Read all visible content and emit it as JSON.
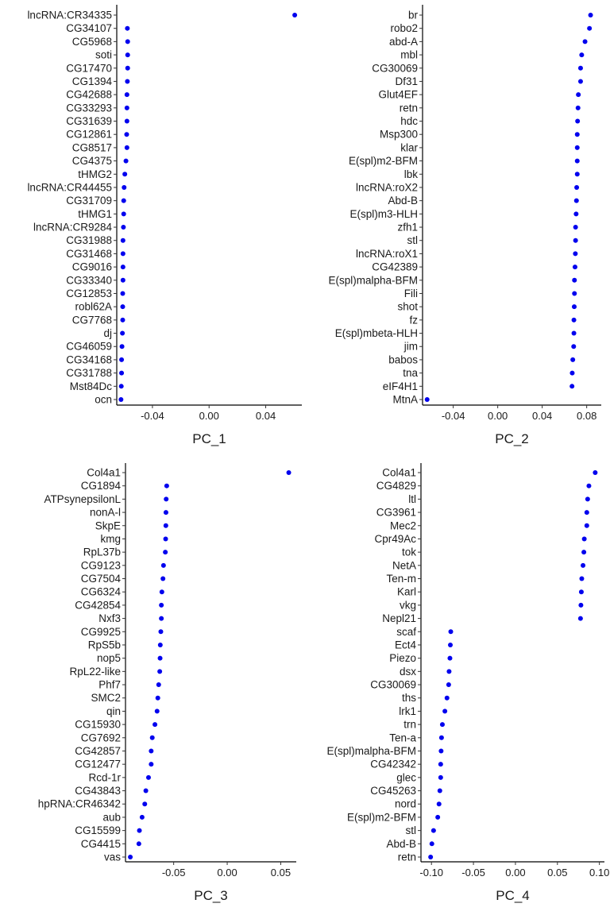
{
  "chart_data": [
    {
      "type": "scatter",
      "xlabel": "PC_1",
      "point_color": "#0000EE",
      "xlim": [
        -0.0652,
        0.0655
      ],
      "xticks": [
        -0.04,
        0.0,
        0.04
      ],
      "xtick_labels": [
        "-0.04",
        "0.00",
        "0.04"
      ],
      "genes": [
        "lncRNA:CR34335",
        "CG34107",
        "CG5968",
        "soti",
        "CG17470",
        "CG1394",
        "CG42688",
        "CG33293",
        "CG31639",
        "CG12861",
        "CG8517",
        "CG4375",
        "tHMG2",
        "lncRNA:CR44455",
        "CG31709",
        "tHMG1",
        "lncRNA:CR9284",
        "CG31988",
        "CG31468",
        "CG9016",
        "CG33340",
        "CG12853",
        "robl62A",
        "CG7768",
        "dj",
        "CG46059",
        "CG34168",
        "CG31788",
        "Mst84Dc",
        "ocn"
      ],
      "values": [
        0.0605,
        -0.0577,
        -0.0575,
        -0.0575,
        -0.0575,
        -0.0577,
        -0.058,
        -0.058,
        -0.058,
        -0.0582,
        -0.058,
        -0.0587,
        -0.0595,
        -0.06,
        -0.0603,
        -0.0603,
        -0.0605,
        -0.0608,
        -0.0608,
        -0.0608,
        -0.0608,
        -0.061,
        -0.061,
        -0.061,
        -0.0612,
        -0.0615,
        -0.0618,
        -0.0618,
        -0.062,
        -0.0622
      ]
    },
    {
      "type": "scatter",
      "xlabel": "PC_2",
      "point_color": "#0000EE",
      "xlim": [
        -0.0676,
        0.0931
      ],
      "xticks": [
        -0.04,
        0.0,
        0.04,
        0.08
      ],
      "xtick_labels": [
        "-0.04",
        "0.00",
        "0.04",
        "0.08"
      ],
      "genes": [
        "br",
        "robo2",
        "abd-A",
        "mbl",
        "CG30069",
        "Df31",
        "Glut4EF",
        "retn",
        "hdc",
        "Msp300",
        "klar",
        "E(spl)m2-BFM",
        "lbk",
        "lncRNA:roX2",
        "Abd-B",
        "E(spl)m3-HLH",
        "zfh1",
        "stl",
        "lncRNA:roX1",
        "CG42389",
        "E(spl)malpha-BFM",
        "Fili",
        "shot",
        "fz",
        "E(spl)mbeta-HLH",
        "jim",
        "babos",
        "tna",
        "eIF4H1",
        "MtnA"
      ],
      "values": [
        0.0835,
        0.0825,
        0.0785,
        0.0755,
        0.0745,
        0.0745,
        0.0725,
        0.0722,
        0.0718,
        0.0715,
        0.0715,
        0.0715,
        0.0715,
        0.071,
        0.0708,
        0.0705,
        0.07,
        0.07,
        0.0698,
        0.0695,
        0.069,
        0.069,
        0.0688,
        0.0685,
        0.0685,
        0.0683,
        0.0675,
        0.067,
        0.0668,
        -0.0635
      ]
    },
    {
      "type": "scatter",
      "xlabel": "PC_3",
      "point_color": "#0000EE",
      "xlim": [
        -0.095,
        0.0645
      ],
      "xticks": [
        -0.05,
        0.0,
        0.05
      ],
      "xtick_labels": [
        "-0.05",
        "0.00",
        "0.05"
      ],
      "genes": [
        "Col4a1",
        "CG1894",
        "ATPsynepsilonL",
        "nonA-l",
        "SkpE",
        "kmg",
        "RpL37b",
        "CG9123",
        "CG7504",
        "CG6324",
        "CG42854",
        "Nxf3",
        "CG9925",
        "RpS5b",
        "nop5",
        "RpL22-like",
        "Phf7",
        "SMC2",
        "qin",
        "CG15930",
        "CG7692",
        "CG42857",
        "CG12477",
        "Rcd-1r",
        "CG43843",
        "hpRNA:CR46342",
        "aub",
        "CG15599",
        "CG4415",
        "vas"
      ],
      "values": [
        0.0575,
        -0.0565,
        -0.057,
        -0.0572,
        -0.0573,
        -0.0575,
        -0.0578,
        -0.0595,
        -0.06,
        -0.061,
        -0.0615,
        -0.0615,
        -0.062,
        -0.0625,
        -0.0627,
        -0.063,
        -0.064,
        -0.0648,
        -0.0655,
        -0.0675,
        -0.07,
        -0.071,
        -0.071,
        -0.0735,
        -0.076,
        -0.077,
        -0.0795,
        -0.082,
        -0.0825,
        -0.0905
      ]
    },
    {
      "type": "scatter",
      "xlabel": "PC_4",
      "point_color": "#0000EE",
      "xlim": [
        -0.1125,
        0.106
      ],
      "xticks": [
        -0.1,
        -0.05,
        0.0,
        0.05,
        0.1
      ],
      "xtick_labels": [
        "-0.10",
        "-0.05",
        "0.00",
        "0.05",
        "0.10"
      ],
      "genes": [
        "Col4a1",
        "CG4829",
        "ltl",
        "CG3961",
        "Mec2",
        "Cpr49Ac",
        "tok",
        "NetA",
        "Ten-m",
        "Karl",
        "vkg",
        "Nepl21",
        "scaf",
        "Ect4",
        "Piezo",
        "dsx",
        "CG30069",
        "ths",
        "lrk1",
        "trn",
        "Ten-a",
        "E(spl)malpha-BFM",
        "CG42342",
        "glec",
        "CG45263",
        "nord",
        "E(spl)m2-BFM",
        "stl",
        "Abd-B",
        "retn"
      ],
      "values": [
        0.095,
        0.0875,
        0.086,
        0.085,
        0.085,
        0.082,
        0.0815,
        0.0805,
        0.079,
        0.0785,
        0.078,
        0.0775,
        -0.077,
        -0.0775,
        -0.078,
        -0.079,
        -0.0795,
        -0.0815,
        -0.084,
        -0.087,
        -0.088,
        -0.0885,
        -0.089,
        -0.089,
        -0.09,
        -0.091,
        -0.0925,
        -0.0975,
        -0.0995,
        -0.101
      ]
    }
  ]
}
